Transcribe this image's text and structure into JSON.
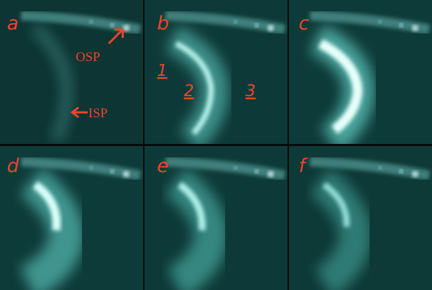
{
  "panels": [
    {
      "label": "a"
    },
    {
      "label": "b"
    },
    {
      "label": "c"
    },
    {
      "label": "d"
    },
    {
      "label": "e"
    },
    {
      "label": "f"
    }
  ],
  "annotations": [
    {
      "text": "OSP"
    },
    {
      "text": "ISP"
    },
    {
      "text": "1"
    },
    {
      "text": "2"
    },
    {
      "text": "3"
    }
  ]
}
